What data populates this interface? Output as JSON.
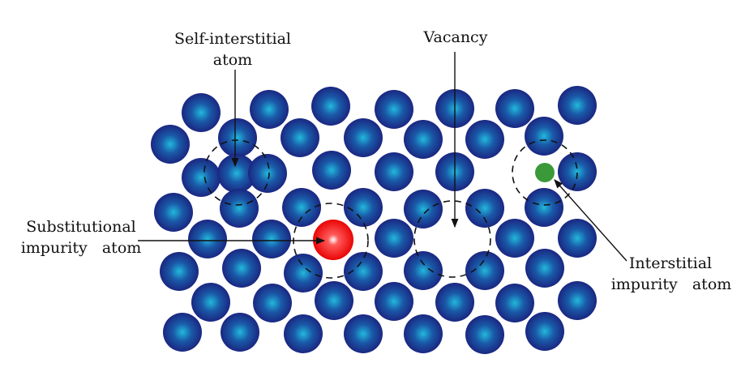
{
  "labels": {
    "self_interstitial_line1": "Self-interstitial",
    "self_interstitial_line2": "atom",
    "vacancy": "Vacancy",
    "substitutional_line1": "Substitutional",
    "substitutional_line2": "impurity   atom",
    "interstitial_line1": "Interstitial",
    "interstitial_line2": "impurity   atom"
  },
  "colors": {
    "host_atom_center": "#1fb4d8",
    "host_atom_edge": "#1a237e",
    "substitutional_atom": "#ff0000",
    "interstitial_atom": "#3a9a3a",
    "text": "#111111"
  }
}
